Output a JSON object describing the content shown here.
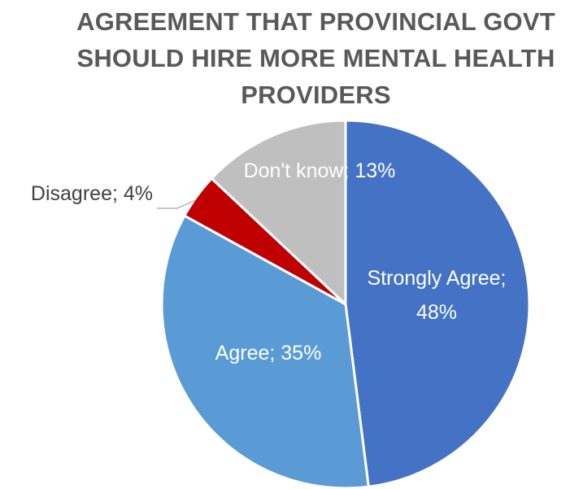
{
  "chart_data": {
    "type": "pie",
    "title_lines": [
      "AGREEMENT THAT PROVINCIAL GOVT",
      "SHOULD HIRE MORE MENTAL HEALTH",
      "PROVIDERS"
    ],
    "slices": [
      {
        "label": "Strongly Agree",
        "value": 48,
        "display": [
          "Strongly Agree;",
          "48%"
        ],
        "color": "#4472C4",
        "label_color": "#ffffff"
      },
      {
        "label": "Agree",
        "value": 35,
        "display": [
          "Agree; 35%"
        ],
        "color": "#5B9BD5",
        "label_color": "#ffffff"
      },
      {
        "label": "Disagree",
        "value": 4,
        "display": [
          "Disagree; 4%"
        ],
        "color": "#C00000",
        "label_color": "#404040"
      },
      {
        "label": "Don't know",
        "value": 13,
        "display": [
          "Don't know; 13%"
        ],
        "color": "#BFBFBF",
        "label_color": "#ffffff"
      }
    ],
    "start_angle": "12 o'clock",
    "direction": "clockwise",
    "legend": "none"
  }
}
